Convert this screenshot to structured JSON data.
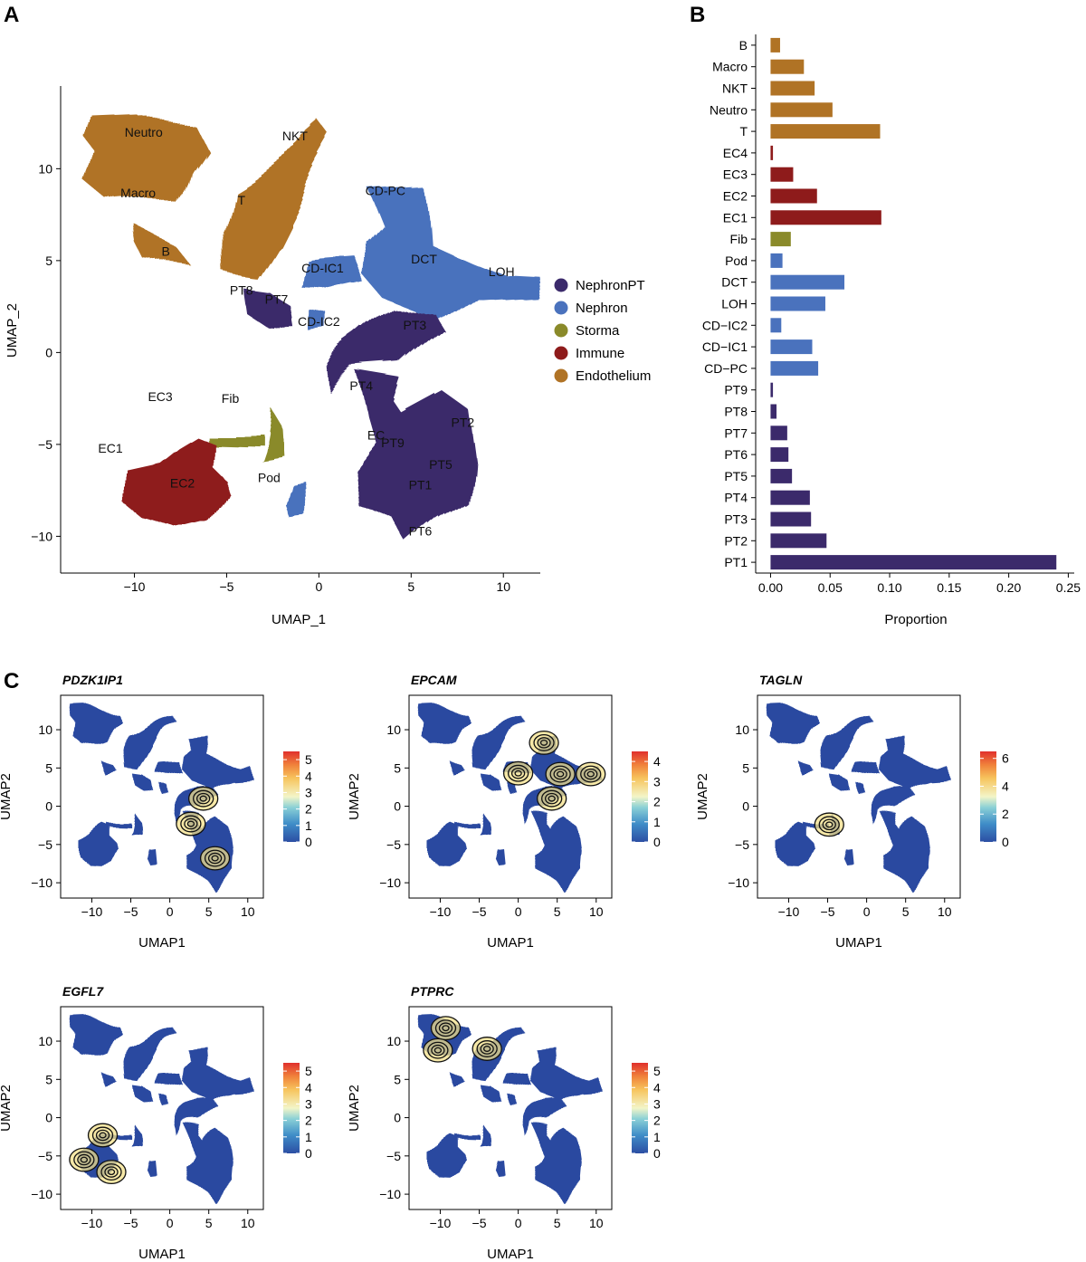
{
  "panels": {
    "a": "A",
    "b": "B",
    "c": "C"
  },
  "colors": {
    "NephronPT": "#3b2a6b",
    "Nephron": "#4a72bd",
    "Storma": "#8a8a2a",
    "Immune": "#8e1b1b",
    "Endothelium": "#b07325",
    "feature_bg": "#2b4aa0"
  },
  "chart_data": [
    {
      "id": "umap",
      "type": "scatter",
      "title": "",
      "xlabel": "UMAP_1",
      "ylabel": "UMAP_2",
      "xlim": [
        -14,
        12
      ],
      "ylim": [
        -12,
        14.5
      ],
      "xticks": [
        -10,
        -5,
        0,
        5,
        10
      ],
      "yticks": [
        -10,
        -5,
        0,
        5,
        10
      ],
      "legend": {
        "placement": "right",
        "entries": [
          {
            "name": "NephronPT",
            "color": "#3b2a6b"
          },
          {
            "name": "Nephron",
            "color": "#4a72bd"
          },
          {
            "name": "Storma",
            "color": "#8a8a2a"
          },
          {
            "name": "Immune",
            "color": "#8e1b1b"
          },
          {
            "name": "Endothelium",
            "color": "#b07325"
          }
        ]
      },
      "clusters": [
        {
          "name": "Neutro",
          "x": -9.5,
          "y": 12.0,
          "group": "Endothelium"
        },
        {
          "name": "NKT",
          "x": -1.3,
          "y": 11.8,
          "group": "Endothelium"
        },
        {
          "name": "Macro",
          "x": -9.8,
          "y": 8.7,
          "group": "Endothelium"
        },
        {
          "name": "T",
          "x": -4.2,
          "y": 8.3,
          "group": "Endothelium"
        },
        {
          "name": "B",
          "x": -8.3,
          "y": 5.5,
          "group": "Endothelium"
        },
        {
          "name": "CD-PC",
          "x": 3.6,
          "y": 8.8,
          "group": "Nephron"
        },
        {
          "name": "DCT",
          "x": 5.7,
          "y": 5.1,
          "group": "Nephron"
        },
        {
          "name": "LOH",
          "x": 9.9,
          "y": 4.4,
          "group": "Nephron"
        },
        {
          "name": "CD-IC1",
          "x": 0.2,
          "y": 4.6,
          "group": "Nephron"
        },
        {
          "name": "CD-IC2",
          "x": 0.0,
          "y": 1.7,
          "group": "Nephron"
        },
        {
          "name": "PT8",
          "x": -4.2,
          "y": 3.4,
          "group": "NephronPT"
        },
        {
          "name": "PT7",
          "x": -2.3,
          "y": 2.9,
          "group": "NephronPT"
        },
        {
          "name": "PT3",
          "x": 5.2,
          "y": 1.5,
          "group": "NephronPT"
        },
        {
          "name": "PT4",
          "x": 2.3,
          "y": -1.8,
          "group": "NephronPT"
        },
        {
          "name": "PT2",
          "x": 7.8,
          "y": -3.8,
          "group": "NephronPT"
        },
        {
          "name": "PT9",
          "x": 4.0,
          "y": -4.9,
          "group": "NephronPT"
        },
        {
          "name": "PT5",
          "x": 6.6,
          "y": -6.1,
          "group": "NephronPT"
        },
        {
          "name": "PT1",
          "x": 5.5,
          "y": -7.2,
          "group": "NephronPT"
        },
        {
          "name": "PT6",
          "x": 5.5,
          "y": -9.7,
          "group": "NephronPT"
        },
        {
          "name": "EC3",
          "x": -8.6,
          "y": -2.4,
          "group": "Immune"
        },
        {
          "name": "Fib",
          "x": -4.8,
          "y": -2.5,
          "group": "Storma"
        },
        {
          "name": "EC1",
          "x": -11.3,
          "y": -5.2,
          "group": "Immune"
        },
        {
          "name": "EC2",
          "x": -7.4,
          "y": -7.1,
          "group": "Immune"
        },
        {
          "name": "Pod",
          "x": -2.7,
          "y": -6.8,
          "group": "Nephron"
        },
        {
          "name": "EC",
          "x": 3.1,
          "y": -4.5,
          "group": "Immune"
        }
      ]
    },
    {
      "id": "proportion",
      "type": "bar",
      "orientation": "horizontal",
      "xlabel": "Proportion",
      "ylabel": "",
      "xlim": [
        -0.0125,
        0.255
      ],
      "xticks": [
        0.0,
        0.05,
        0.1,
        0.15,
        0.2,
        0.25
      ],
      "xtick_labels": [
        "0.00",
        "0.05",
        "0.10",
        "0.15",
        "0.20",
        "0.25"
      ],
      "categories": [
        "B",
        "Macro",
        "NKT",
        "Neutro",
        "T",
        "EC4",
        "EC3",
        "EC2",
        "EC1",
        "Fib",
        "Pod",
        "DCT",
        "LOH",
        "CD−IC2",
        "CD−IC1",
        "CD−PC",
        "PT9",
        "PT8",
        "PT7",
        "PT6",
        "PT5",
        "PT4",
        "PT3",
        "PT2",
        "PT1"
      ],
      "values": [
        0.008,
        0.028,
        0.037,
        0.052,
        0.092,
        0.002,
        0.019,
        0.039,
        0.093,
        0.017,
        0.01,
        0.062,
        0.046,
        0.009,
        0.035,
        0.04,
        0.002,
        0.005,
        0.014,
        0.015,
        0.018,
        0.033,
        0.034,
        0.047,
        0.24
      ],
      "groups": [
        "Endothelium",
        "Endothelium",
        "Endothelium",
        "Endothelium",
        "Endothelium",
        "Immune",
        "Immune",
        "Immune",
        "Immune",
        "Storma",
        "Nephron",
        "Nephron",
        "Nephron",
        "Nephron",
        "Nephron",
        "Nephron",
        "NephronPT",
        "NephronPT",
        "NephronPT",
        "NephronPT",
        "NephronPT",
        "NephronPT",
        "NephronPT",
        "NephronPT",
        "NephronPT"
      ]
    },
    {
      "id": "feature-plots",
      "type": "scatter",
      "xlabel": "UMAP1",
      "ylabel": "UMAP2",
      "xlim": [
        -14,
        12
      ],
      "ylim": [
        -12,
        14.5
      ],
      "xticks": [
        -10,
        -5,
        0,
        5,
        10
      ],
      "yticks": [
        -10,
        -5,
        0,
        5,
        10
      ],
      "genes": [
        {
          "gene": "PDZK1IP1",
          "colorbar": [
            0,
            1,
            2,
            3,
            4,
            5
          ],
          "cbmax": 5.5,
          "hotspots": [
            {
              "x": 4.3,
              "y": 1.0
            },
            {
              "x": 2.7,
              "y": -2.3
            },
            {
              "x": 5.8,
              "y": -6.8
            }
          ]
        },
        {
          "gene": "EPCAM",
          "colorbar": [
            0,
            1,
            2,
            3,
            4
          ],
          "cbmax": 4.5,
          "hotspots": [
            {
              "x": 3.3,
              "y": 8.3
            },
            {
              "x": 0.0,
              "y": 4.3
            },
            {
              "x": 9.3,
              "y": 4.2
            },
            {
              "x": 5.4,
              "y": 4.2
            },
            {
              "x": 4.3,
              "y": 1.0
            }
          ]
        },
        {
          "gene": "TAGLN",
          "colorbar": [
            0,
            2,
            4,
            6
          ],
          "cbmax": 6.5,
          "hotspots": [
            {
              "x": -4.8,
              "y": -2.4
            }
          ]
        },
        {
          "gene": "EGFL7",
          "colorbar": [
            0,
            1,
            2,
            3,
            4,
            5
          ],
          "cbmax": 5.5,
          "hotspots": [
            {
              "x": -11.0,
              "y": -5.5
            },
            {
              "x": -7.5,
              "y": -7.1
            },
            {
              "x": -8.6,
              "y": -2.3
            }
          ]
        },
        {
          "gene": "PTPRC",
          "colorbar": [
            0,
            1,
            2,
            3,
            4,
            5
          ],
          "cbmax": 5.5,
          "hotspots": [
            {
              "x": -9.3,
              "y": 11.7
            },
            {
              "x": -4.0,
              "y": 9.0
            },
            {
              "x": -10.3,
              "y": 8.8
            }
          ]
        }
      ]
    }
  ]
}
